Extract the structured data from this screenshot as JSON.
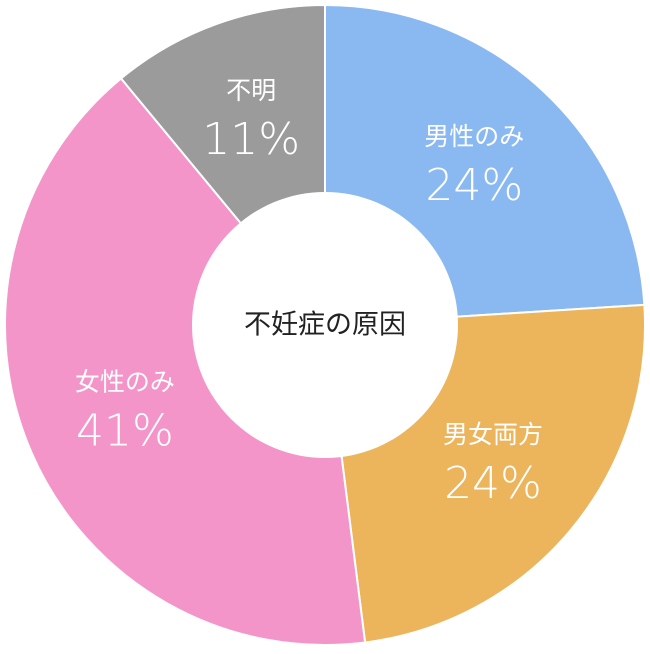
{
  "chart_data": {
    "type": "donut",
    "title": "不妊症の原因",
    "categories": [
      "男性のみ",
      "男女両方",
      "女性のみ",
      "不明"
    ],
    "values": [
      24,
      24,
      41,
      11
    ],
    "value_labels": [
      "24%",
      "24%",
      "41%",
      "11%"
    ],
    "colors": [
      "#8ab9f1",
      "#ecb45b",
      "#f495c9",
      "#9b9b9b"
    ]
  }
}
